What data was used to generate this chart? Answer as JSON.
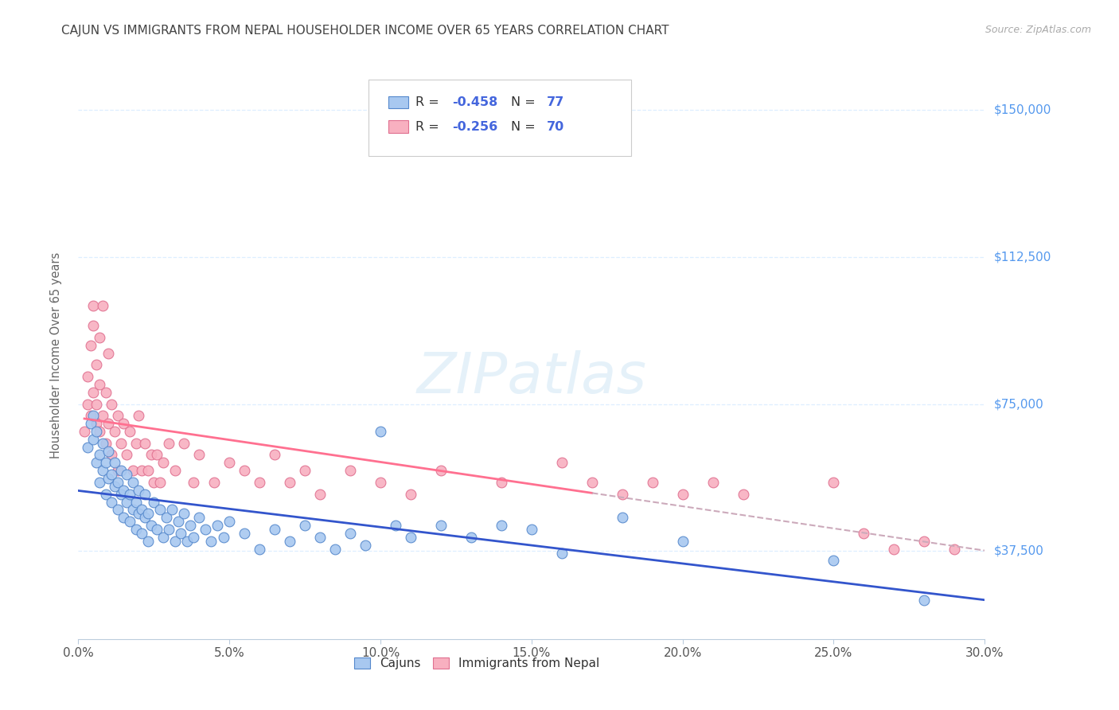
{
  "title": "CAJUN VS IMMIGRANTS FROM NEPAL HOUSEHOLDER INCOME OVER 65 YEARS CORRELATION CHART",
  "source": "Source: ZipAtlas.com",
  "ylabel": "Householder Income Over 65 years",
  "xlabel_ticks": [
    "0.0%",
    "5.0%",
    "10.0%",
    "15.0%",
    "20.0%",
    "25.0%",
    "30.0%"
  ],
  "ytick_labels": [
    "$37,500",
    "$75,000",
    "$112,500",
    "$150,000"
  ],
  "ytick_values": [
    37500,
    75000,
    112500,
    150000
  ],
  "xlim": [
    0.0,
    0.3
  ],
  "ylim": [
    15000,
    160000
  ],
  "watermark": "ZIPatlas",
  "cajun_color": "#a8c8f0",
  "cajun_edge_color": "#5588cc",
  "nepal_color": "#f8b0c0",
  "nepal_edge_color": "#e07090",
  "cajun_line_color": "#3355cc",
  "nepal_line_color": "#ff7090",
  "nepal_dashed_color": "#ccaabb",
  "background_color": "#ffffff",
  "grid_color": "#ddeeff",
  "title_color": "#444444",
  "source_color": "#aaaaaa",
  "axis_label_color": "#666666",
  "ytick_color": "#5599ee",
  "legend_r_color": "#4466dd",
  "legend_n_color": "#4466dd",
  "cajun_scatter": [
    [
      0.003,
      64000
    ],
    [
      0.004,
      70000
    ],
    [
      0.005,
      66000
    ],
    [
      0.005,
      72000
    ],
    [
      0.006,
      60000
    ],
    [
      0.006,
      68000
    ],
    [
      0.007,
      55000
    ],
    [
      0.007,
      62000
    ],
    [
      0.008,
      58000
    ],
    [
      0.008,
      65000
    ],
    [
      0.009,
      52000
    ],
    [
      0.009,
      60000
    ],
    [
      0.01,
      56000
    ],
    [
      0.01,
      63000
    ],
    [
      0.011,
      50000
    ],
    [
      0.011,
      57000
    ],
    [
      0.012,
      54000
    ],
    [
      0.012,
      60000
    ],
    [
      0.013,
      48000
    ],
    [
      0.013,
      55000
    ],
    [
      0.014,
      52000
    ],
    [
      0.014,
      58000
    ],
    [
      0.015,
      46000
    ],
    [
      0.015,
      53000
    ],
    [
      0.016,
      50000
    ],
    [
      0.016,
      57000
    ],
    [
      0.017,
      45000
    ],
    [
      0.017,
      52000
    ],
    [
      0.018,
      48000
    ],
    [
      0.018,
      55000
    ],
    [
      0.019,
      43000
    ],
    [
      0.019,
      50000
    ],
    [
      0.02,
      47000
    ],
    [
      0.02,
      53000
    ],
    [
      0.021,
      42000
    ],
    [
      0.021,
      48000
    ],
    [
      0.022,
      46000
    ],
    [
      0.022,
      52000
    ],
    [
      0.023,
      40000
    ],
    [
      0.023,
      47000
    ],
    [
      0.024,
      44000
    ],
    [
      0.025,
      50000
    ],
    [
      0.026,
      43000
    ],
    [
      0.027,
      48000
    ],
    [
      0.028,
      41000
    ],
    [
      0.029,
      46000
    ],
    [
      0.03,
      43000
    ],
    [
      0.031,
      48000
    ],
    [
      0.032,
      40000
    ],
    [
      0.033,
      45000
    ],
    [
      0.034,
      42000
    ],
    [
      0.035,
      47000
    ],
    [
      0.036,
      40000
    ],
    [
      0.037,
      44000
    ],
    [
      0.038,
      41000
    ],
    [
      0.04,
      46000
    ],
    [
      0.042,
      43000
    ],
    [
      0.044,
      40000
    ],
    [
      0.046,
      44000
    ],
    [
      0.048,
      41000
    ],
    [
      0.05,
      45000
    ],
    [
      0.055,
      42000
    ],
    [
      0.06,
      38000
    ],
    [
      0.065,
      43000
    ],
    [
      0.07,
      40000
    ],
    [
      0.075,
      44000
    ],
    [
      0.08,
      41000
    ],
    [
      0.085,
      38000
    ],
    [
      0.09,
      42000
    ],
    [
      0.095,
      39000
    ],
    [
      0.1,
      68000
    ],
    [
      0.105,
      44000
    ],
    [
      0.11,
      41000
    ],
    [
      0.12,
      44000
    ],
    [
      0.13,
      41000
    ],
    [
      0.14,
      44000
    ],
    [
      0.15,
      43000
    ],
    [
      0.16,
      37000
    ],
    [
      0.18,
      46000
    ],
    [
      0.2,
      40000
    ],
    [
      0.25,
      35000
    ],
    [
      0.28,
      25000
    ]
  ],
  "nepal_scatter": [
    [
      0.002,
      68000
    ],
    [
      0.003,
      75000
    ],
    [
      0.003,
      82000
    ],
    [
      0.004,
      72000
    ],
    [
      0.004,
      90000
    ],
    [
      0.005,
      78000
    ],
    [
      0.005,
      95000
    ],
    [
      0.005,
      100000
    ],
    [
      0.006,
      70000
    ],
    [
      0.006,
      85000
    ],
    [
      0.006,
      75000
    ],
    [
      0.007,
      68000
    ],
    [
      0.007,
      80000
    ],
    [
      0.007,
      92000
    ],
    [
      0.008,
      72000
    ],
    [
      0.008,
      100000
    ],
    [
      0.009,
      65000
    ],
    [
      0.009,
      78000
    ],
    [
      0.01,
      70000
    ],
    [
      0.01,
      88000
    ],
    [
      0.011,
      62000
    ],
    [
      0.011,
      75000
    ],
    [
      0.012,
      68000
    ],
    [
      0.013,
      72000
    ],
    [
      0.013,
      58000
    ],
    [
      0.014,
      65000
    ],
    [
      0.015,
      70000
    ],
    [
      0.016,
      62000
    ],
    [
      0.017,
      68000
    ],
    [
      0.018,
      58000
    ],
    [
      0.019,
      65000
    ],
    [
      0.02,
      72000
    ],
    [
      0.021,
      58000
    ],
    [
      0.022,
      65000
    ],
    [
      0.023,
      58000
    ],
    [
      0.024,
      62000
    ],
    [
      0.025,
      55000
    ],
    [
      0.026,
      62000
    ],
    [
      0.027,
      55000
    ],
    [
      0.028,
      60000
    ],
    [
      0.03,
      65000
    ],
    [
      0.032,
      58000
    ],
    [
      0.035,
      65000
    ],
    [
      0.038,
      55000
    ],
    [
      0.04,
      62000
    ],
    [
      0.045,
      55000
    ],
    [
      0.05,
      60000
    ],
    [
      0.055,
      58000
    ],
    [
      0.06,
      55000
    ],
    [
      0.065,
      62000
    ],
    [
      0.07,
      55000
    ],
    [
      0.075,
      58000
    ],
    [
      0.08,
      52000
    ],
    [
      0.09,
      58000
    ],
    [
      0.1,
      55000
    ],
    [
      0.11,
      52000
    ],
    [
      0.12,
      58000
    ],
    [
      0.14,
      55000
    ],
    [
      0.16,
      60000
    ],
    [
      0.17,
      55000
    ],
    [
      0.18,
      52000
    ],
    [
      0.19,
      55000
    ],
    [
      0.2,
      52000
    ],
    [
      0.21,
      55000
    ],
    [
      0.22,
      52000
    ],
    [
      0.25,
      55000
    ],
    [
      0.27,
      38000
    ],
    [
      0.26,
      42000
    ],
    [
      0.28,
      40000
    ],
    [
      0.29,
      38000
    ]
  ]
}
